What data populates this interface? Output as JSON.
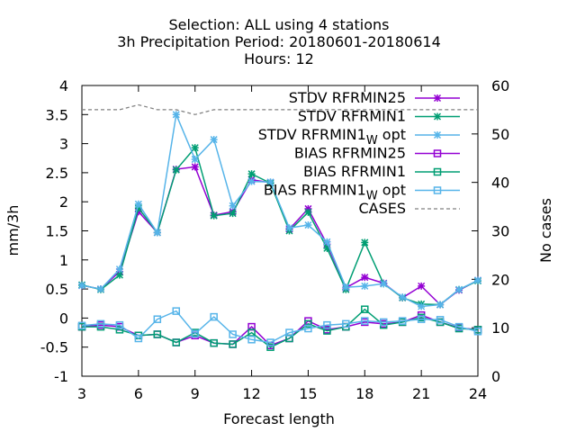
{
  "chart_data": {
    "type": "line",
    "title_lines": [
      "Selection: ALL using     4 stations",
      "3h Precipitation   Period: 20180601-20180614",
      "Hours:  12"
    ],
    "xlabel": "Forecast length",
    "ylabel": "mm/3h",
    "y2label": "No cases",
    "xlim": [
      3,
      24
    ],
    "ylim": [
      -1,
      4
    ],
    "y2lim": [
      0,
      60
    ],
    "x_ticks": [
      3,
      6,
      9,
      12,
      15,
      18,
      21,
      24
    ],
    "y_ticks": [
      -1,
      -0.5,
      0,
      0.5,
      1,
      1.5,
      2,
      2.5,
      3,
      3.5,
      4
    ],
    "y2_ticks": [
      0,
      10,
      20,
      30,
      40,
      50,
      60
    ],
    "legend_position": "top-right",
    "x": [
      3,
      4,
      5,
      6,
      7,
      8,
      9,
      10,
      11,
      12,
      13,
      14,
      15,
      16,
      17,
      18,
      19,
      20,
      21,
      22,
      23,
      24
    ],
    "series": [
      {
        "name": "STDV RFRMIN25",
        "color": "#9400d3",
        "marker": "star",
        "axis": "y",
        "values": [
          0.56,
          0.5,
          0.8,
          1.83,
          1.47,
          2.56,
          2.6,
          1.77,
          1.83,
          2.38,
          2.33,
          1.53,
          1.88,
          1.27,
          0.52,
          0.7,
          0.6,
          0.35,
          0.55,
          0.23,
          0.48,
          0.65
        ]
      },
      {
        "name": "STDV RFRMIN1",
        "color": "#009e73",
        "marker": "star",
        "axis": "y",
        "values": [
          0.57,
          0.49,
          0.74,
          1.89,
          1.47,
          2.55,
          2.93,
          1.76,
          1.8,
          2.48,
          2.32,
          1.5,
          1.82,
          1.2,
          0.49,
          1.3,
          0.59,
          0.35,
          0.24,
          0.23,
          0.49,
          0.64
        ]
      },
      {
        "name": "STDV RFRMIN1_W opt",
        "color": "#56b4e9",
        "marker": "star",
        "axis": "y",
        "values": [
          0.56,
          0.5,
          0.84,
          1.96,
          1.47,
          3.5,
          2.73,
          3.07,
          1.93,
          2.35,
          2.34,
          1.55,
          1.6,
          1.31,
          0.53,
          0.55,
          0.59,
          0.36,
          0.2,
          0.23,
          0.49,
          0.65
        ]
      },
      {
        "name": "BIAS RFRMIN25",
        "color": "#9400d3",
        "marker": "square",
        "axis": "y",
        "values": [
          -0.15,
          -0.12,
          -0.15,
          -0.3,
          -0.28,
          -0.42,
          -0.3,
          -0.43,
          -0.45,
          -0.15,
          -0.47,
          -0.35,
          -0.05,
          -0.2,
          -0.15,
          -0.07,
          -0.1,
          -0.07,
          0.05,
          -0.07,
          -0.17,
          -0.2
        ]
      },
      {
        "name": "BIAS RFRMIN1",
        "color": "#009e73",
        "marker": "square",
        "axis": "y",
        "values": [
          -0.15,
          -0.15,
          -0.2,
          -0.3,
          -0.28,
          -0.42,
          -0.25,
          -0.43,
          -0.45,
          -0.25,
          -0.5,
          -0.35,
          -0.1,
          -0.22,
          -0.15,
          0.15,
          -0.12,
          -0.07,
          0.01,
          -0.07,
          -0.18,
          -0.2
        ]
      },
      {
        "name": "BIAS RFRMIN1_W opt",
        "color": "#56b4e9",
        "marker": "square",
        "axis": "y",
        "values": [
          -0.13,
          -0.1,
          -0.12,
          -0.35,
          -0.02,
          0.12,
          -0.27,
          0.02,
          -0.28,
          -0.37,
          -0.42,
          -0.25,
          -0.18,
          -0.12,
          -0.1,
          -0.05,
          -0.07,
          -0.05,
          -0.02,
          -0.03,
          -0.15,
          -0.23
        ]
      },
      {
        "name": "CASES",
        "color": "#808080",
        "marker": "none",
        "dashed": true,
        "axis": "y2",
        "values": [
          55,
          55,
          55,
          56,
          55,
          55,
          54,
          55,
          55,
          55,
          55,
          55,
          55,
          55,
          55,
          55,
          55,
          55,
          55,
          55,
          55,
          55
        ]
      }
    ]
  }
}
